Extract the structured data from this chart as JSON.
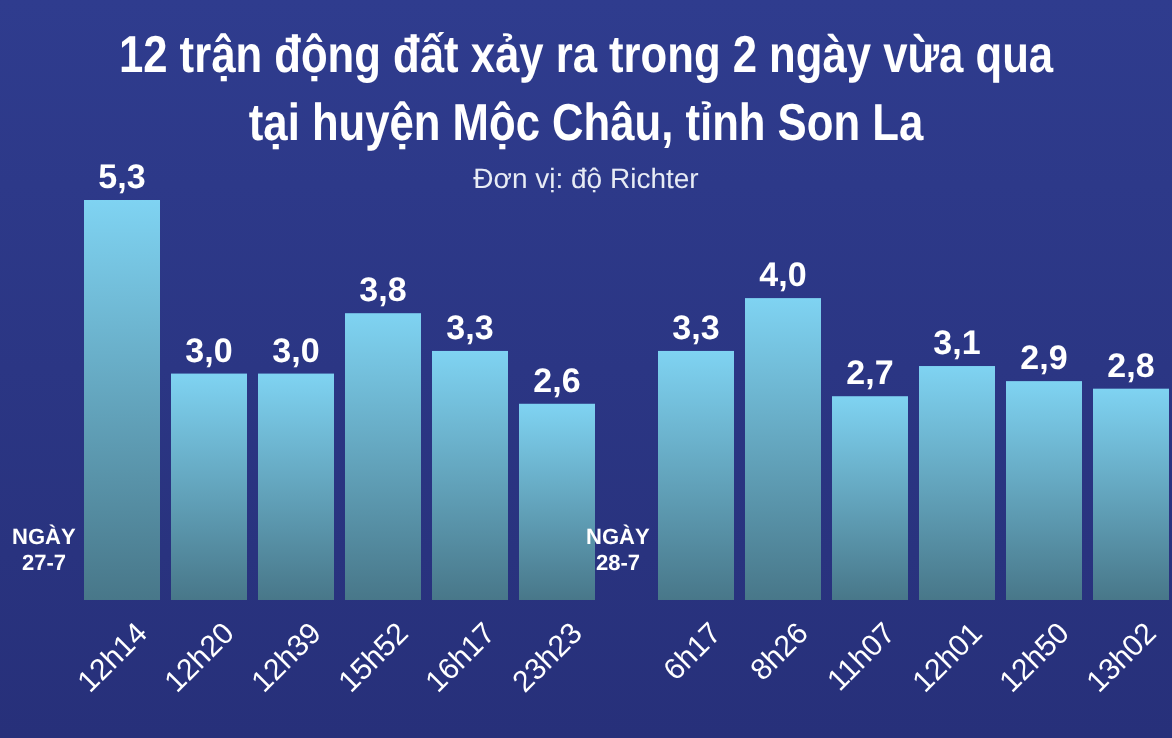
{
  "chart_data": {
    "type": "bar",
    "title": "12 trận động đất xảy ra trong 2 ngày vừa qua\ntại huyện Mộc Châu, tỉnh Son La",
    "subtitle": "Đơn vị: độ Richter",
    "categories": [
      "12h14",
      "12h20",
      "12h39",
      "15h52",
      "16h17",
      "23h23",
      "6h17",
      "8h26",
      "11h07",
      "12h01",
      "12h50",
      "13h02"
    ],
    "values": [
      5.3,
      3.0,
      3.0,
      3.8,
      3.3,
      2.6,
      3.3,
      4.0,
      2.7,
      3.1,
      2.9,
      2.8
    ],
    "value_labels": [
      "5,3",
      "3,0",
      "3,0",
      "3,8",
      "3,3",
      "2,6",
      "3,3",
      "4,0",
      "2,7",
      "3,1",
      "2,9",
      "2,8"
    ],
    "color": "#7fd3f2",
    "annotations": [
      "NGÀY\n27-7",
      "NGÀY\n28-7"
    ]
  }
}
